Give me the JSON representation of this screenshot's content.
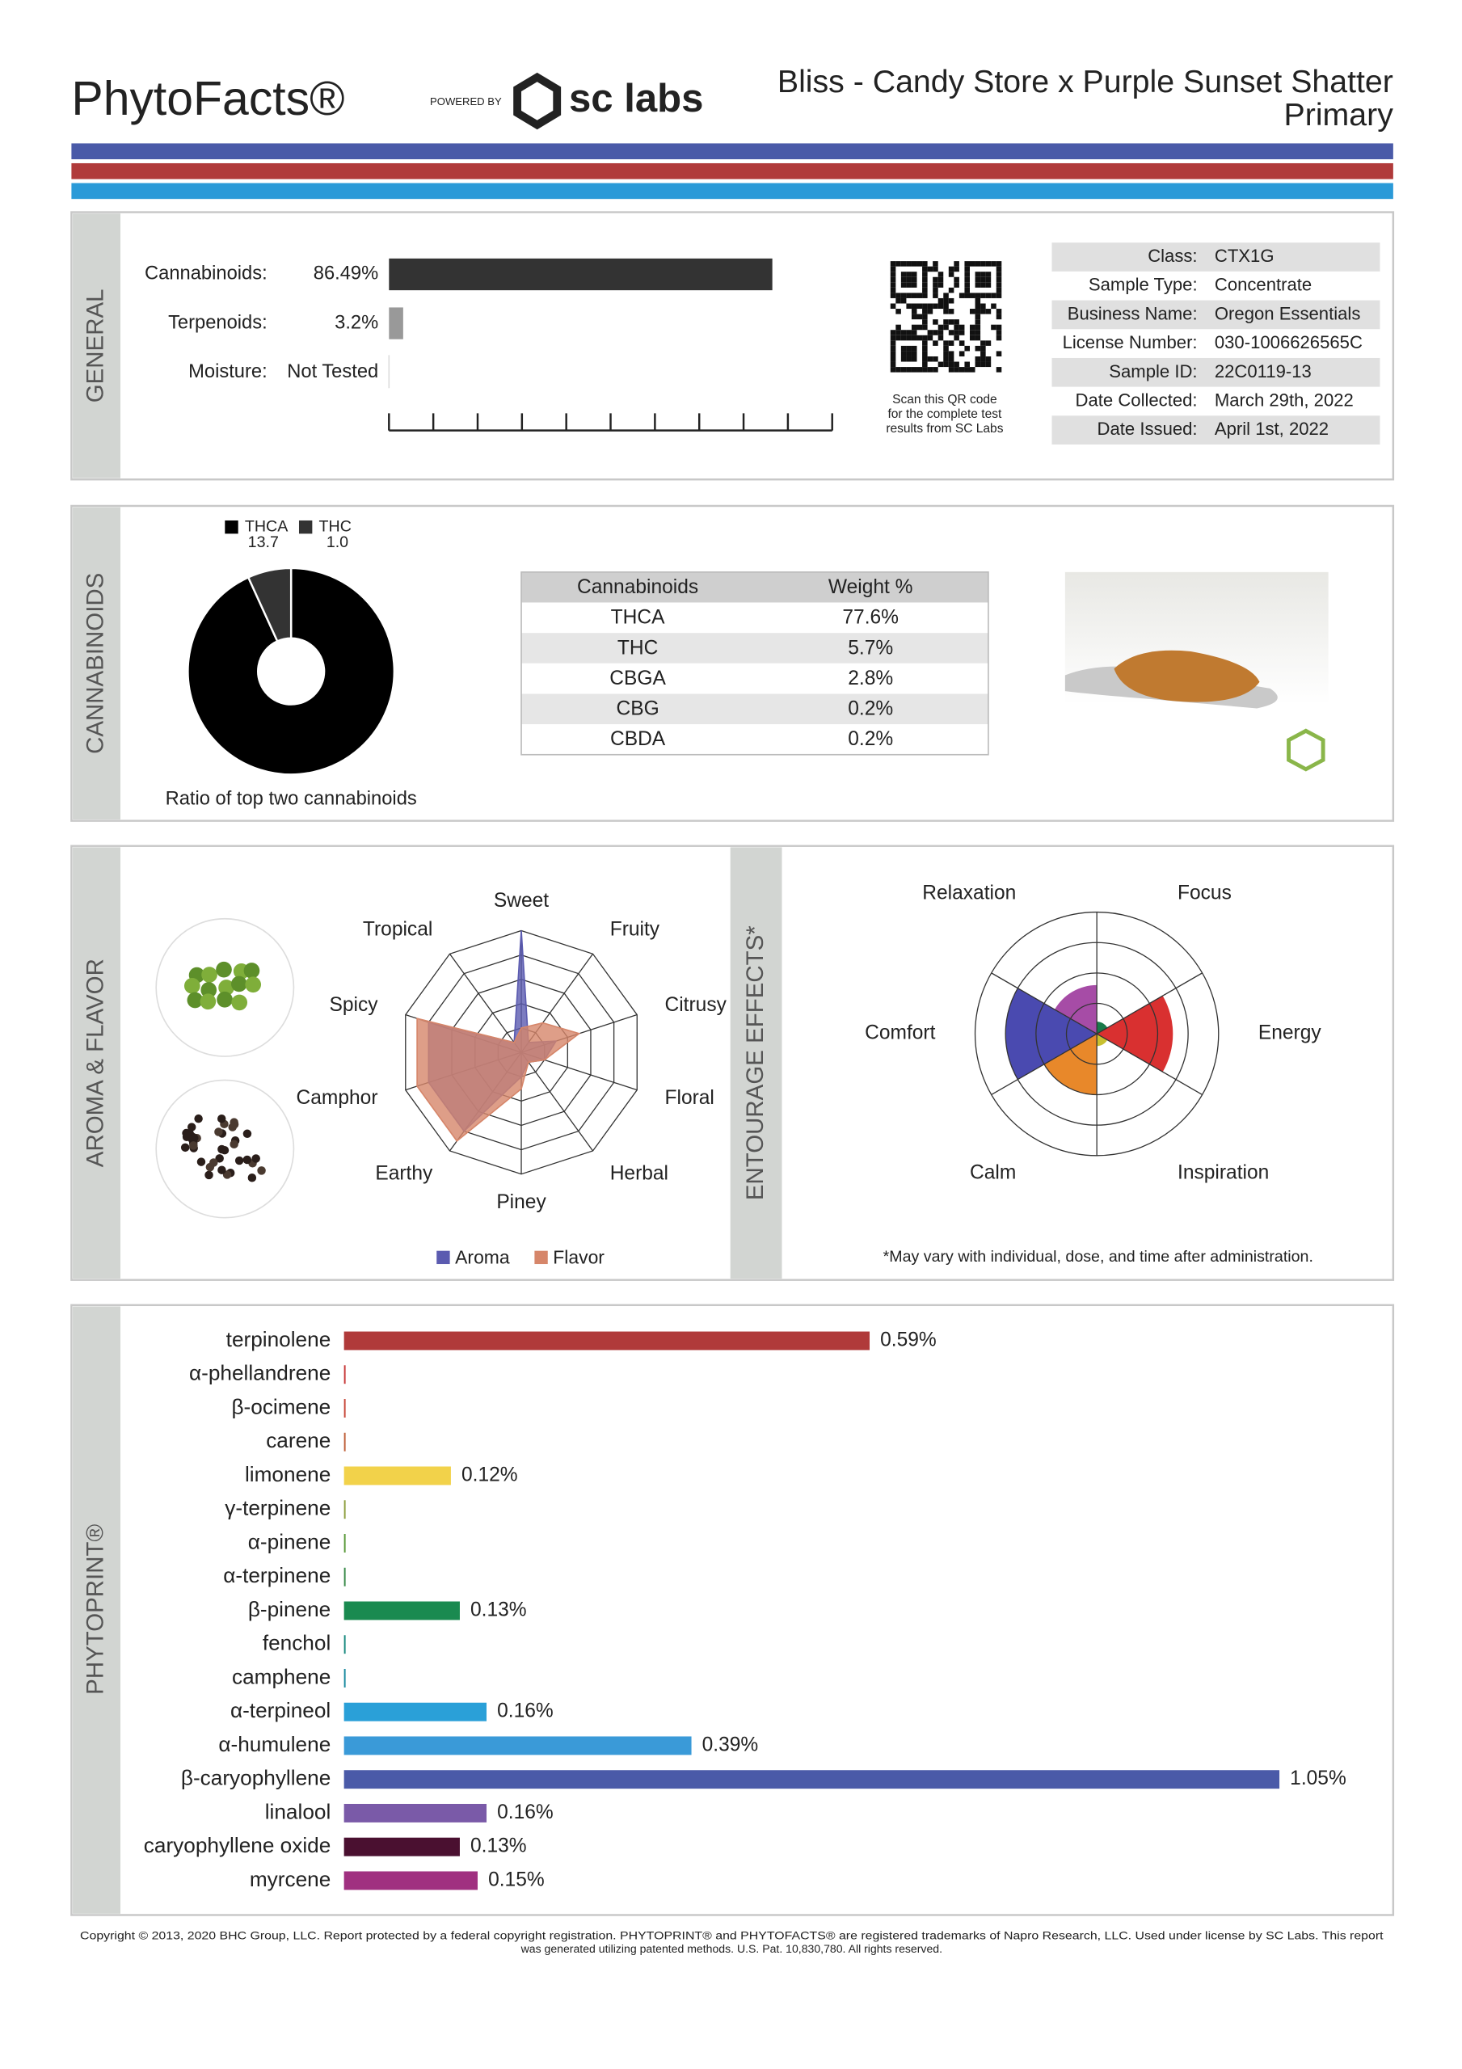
{
  "header": {
    "brand": "PhytoFacts®",
    "powered_by": "POWERED BY",
    "lab": "sc labs",
    "title": "Bliss - Candy Store x Purple Sunset Shatter",
    "subtitle": "Primary"
  },
  "general": {
    "section": "GENERAL",
    "bars": {
      "labels": [
        "Cannabinoids:",
        "Terpenoids:",
        "Moisture:"
      ],
      "values": [
        86.49,
        3.2,
        null
      ],
      "value_labels": [
        "86.49%",
        "3.2%",
        "Not Tested"
      ],
      "colors": [
        "#333333",
        "#999999",
        null
      ],
      "xlim": [
        0,
        100
      ],
      "xticks": [
        0,
        10,
        20,
        30,
        40,
        50,
        60,
        70,
        80,
        90,
        100
      ]
    },
    "qr_caption": [
      "Scan this QR code",
      "for the complete test",
      "results from SC Labs"
    ],
    "info": [
      {
        "label": "Class:",
        "value": "CTX1G"
      },
      {
        "label": "Sample Type:",
        "value": "Concentrate"
      },
      {
        "label": "Business Name:",
        "value": "Oregon Essentials"
      },
      {
        "label": "License Number:",
        "value": "030-1006626565C"
      },
      {
        "label": "Sample ID:",
        "value": "22C0119-13"
      },
      {
        "label": "Date Collected:",
        "value": "March 29th, 2022"
      },
      {
        "label": "Date Issued:",
        "value": "April 1st, 2022"
      }
    ]
  },
  "cannabinoids": {
    "section": "CANNABINOIDS",
    "pie": {
      "labels": [
        "THCA",
        "THC"
      ],
      "values": [
        13.7,
        1.0
      ],
      "value_labels": [
        "13.7",
        "1.0"
      ],
      "colors": [
        "#000000",
        "#333333"
      ],
      "caption": "Ratio of top two cannabinoids"
    },
    "table": {
      "header": [
        "Cannabinoids",
        "Weight %"
      ],
      "rows": [
        [
          "THCA",
          "77.6%"
        ],
        [
          "THC",
          "5.7%"
        ],
        [
          "CBGA",
          "2.8%"
        ],
        [
          "CBG",
          "0.2%"
        ],
        [
          "CBDA",
          "0.2%"
        ]
      ]
    }
  },
  "aroma": {
    "section": "AROMA & FLAVOR",
    "axes": [
      "Sweet",
      "Fruity",
      "Citrusy",
      "Floral",
      "Herbal",
      "Piney",
      "Earthy",
      "Camphor",
      "Spicy",
      "Tropical"
    ],
    "rlim": [
      0,
      5
    ],
    "rticks": [
      1,
      2,
      3,
      4,
      5
    ],
    "series": [
      {
        "name": "Aroma",
        "color": "#5b5bb0",
        "values": [
          5,
          0.5,
          1.5,
          1,
          0.5,
          1,
          4,
          4,
          4,
          0.5
        ]
      },
      {
        "name": "Flavor",
        "color": "#d6866a",
        "values": [
          1,
          1.5,
          2.5,
          1,
          0.5,
          1.5,
          4.5,
          4.5,
          4.5,
          0.5
        ]
      }
    ]
  },
  "effects": {
    "section": "ENTOURAGE EFFECTS*",
    "categories": [
      "Focus",
      "Energy",
      "Inspiration",
      "Calm",
      "Comfort",
      "Relaxation"
    ],
    "values": [
      0.4,
      2.5,
      0.4,
      2,
      3,
      1.6
    ],
    "colors": [
      "#1a7a4a",
      "#d93030",
      "#c8c030",
      "#e8882a",
      "#4a4ab0",
      "#a64ca6"
    ],
    "rlim": [
      0,
      4
    ],
    "rticks": [
      1,
      2,
      3,
      4
    ],
    "note": "*May vary with individual, dose, and time after administration."
  },
  "phytoprint": {
    "section": "PHYTOPRINT®",
    "categories": [
      "terpinolene",
      "α-phellandrene",
      "β-ocimene",
      "carene",
      "limonene",
      "γ-terpinene",
      "α-pinene",
      "α-terpinene",
      "β-pinene",
      "fenchol",
      "camphene",
      "α-terpineol",
      "α-humulene",
      "β-caryophyllene",
      "linalool",
      "caryophyllene oxide",
      "myrcene"
    ],
    "values": [
      0.59,
      0,
      0,
      0,
      0.12,
      0,
      0,
      0,
      0.13,
      0,
      0,
      0.16,
      0.39,
      1.05,
      0.16,
      0.13,
      0.15
    ],
    "value_labels": [
      "0.59%",
      null,
      null,
      null,
      "0.12%",
      null,
      null,
      null,
      "0.13%",
      null,
      null,
      "0.16%",
      "0.39%",
      "1.05%",
      "0.16%",
      "0.13%",
      "0.15%"
    ],
    "colors": [
      "#b03a3a",
      "#c83a3a",
      "#c8483a",
      "#c0603a",
      "#f2d24a",
      "#8fa040",
      "#5a9a3a",
      "#3a8a4a",
      "#1a8a50",
      "#1a8a80",
      "#1a8aa0",
      "#2aa0d8",
      "#3a9ad8",
      "#4a5aa8",
      "#7a5aa8",
      "#4a1030",
      "#a03080"
    ],
    "xlim": [
      0,
      1.05
    ]
  },
  "footer": [
    "Copyright © 2013, 2020 BHC Group, LLC. Report protected by a federal copyright registration. PHYTOPRINT® and PHYTOFACTS® are registered trademarks of Napro Research, LLC. Used under license by SC Labs. This report",
    "was generated utilizing patented methods. U.S. Pat. 10,830,780. All rights reserved."
  ]
}
